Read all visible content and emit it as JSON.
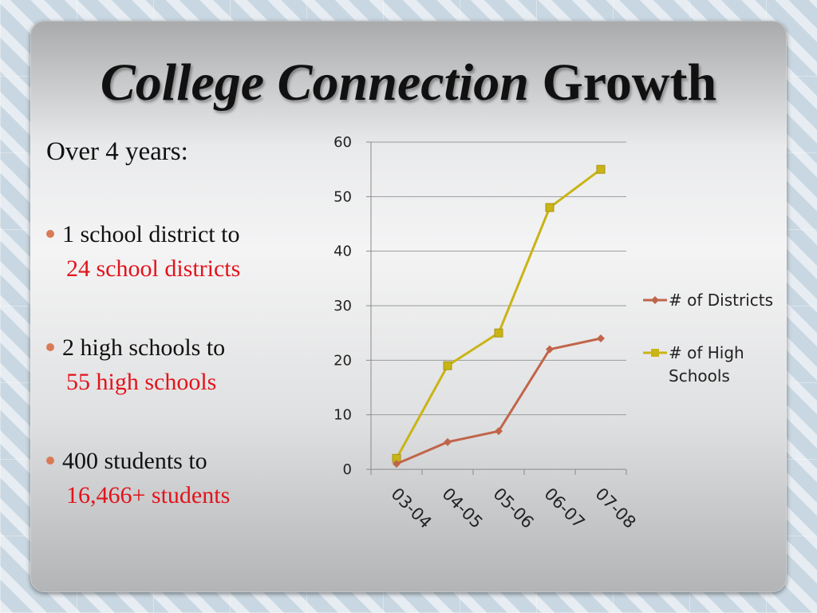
{
  "slide": {
    "title_italic": "College Connection",
    "title_rest": "Growth",
    "intro": "Over 4 years:",
    "bullets": [
      {
        "text": "1 school district to",
        "highlight": "24 school districts"
      },
      {
        "text": "2 high schools to",
        "highlight": "55 high schools"
      },
      {
        "text": "400 students to",
        "highlight": "16,466+ students"
      }
    ],
    "colors": {
      "highlight": "#e3131b",
      "bullet": "#d97a57"
    }
  },
  "chart_data": {
    "type": "line",
    "categories": [
      "03-04",
      "04-05",
      "05-06",
      "06-07",
      "07-08"
    ],
    "series": [
      {
        "name": "# of Districts",
        "values": [
          1,
          5,
          7,
          22,
          24
        ],
        "color": "#c0654a",
        "marker": "diamond"
      },
      {
        "name": "# of High Schools",
        "name_lines": [
          "# of High",
          "Schools"
        ],
        "values": [
          2,
          19,
          25,
          48,
          55
        ],
        "color": "#c9b416",
        "marker": "square"
      }
    ],
    "ylim": [
      0,
      60
    ],
    "yticks": [
      0,
      10,
      20,
      30,
      40,
      50,
      60
    ],
    "grid": true,
    "legend": "right"
  }
}
